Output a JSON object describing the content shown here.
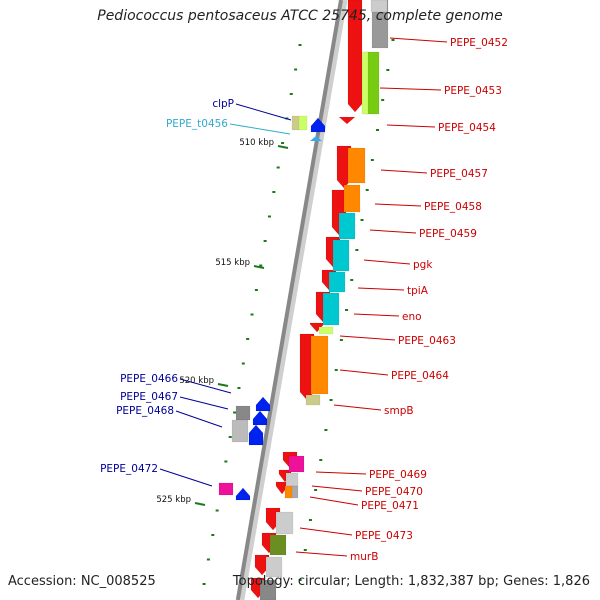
{
  "title": "Pediococcus pentosaceus ATCC 25745, complete genome",
  "footer": {
    "accession": "Accession: NC_008525",
    "topology": "Topology: circular; Length: 1,832,387 bp; Genes: 1,826"
  },
  "colors": {
    "label_red": "#cc0000",
    "label_blue": "#000099",
    "label_cyan": "#33aacc",
    "gene_red": "#ee1111",
    "gene_orange": "#ff8800",
    "gene_cyan": "#00c8d0",
    "gene_green": "#77cc11",
    "gene_lightgreen": "#ccff66",
    "gene_olive": "#6b8e23",
    "gene_gray": "#999999",
    "gene_magenta": "#ee1199",
    "gene_blue": "#0022ee",
    "gene_tan": "#cccc88",
    "gene_bright_green": "#22ee22",
    "axis_gray": "#888888",
    "tick_green": "#1a7a1a"
  },
  "ticks": [
    "510 kbp",
    "515 kbp",
    "520 kbp",
    "525 kbp"
  ],
  "labels": {
    "right": [
      "PEPE_0452",
      "PEPE_0453",
      "PEPE_0454",
      "PEPE_0457",
      "PEPE_0458",
      "PEPE_0459",
      "pgk",
      "tpiA",
      "eno",
      "PEPE_0463",
      "PEPE_0464",
      "smpB",
      "PEPE_0469",
      "PEPE_0470",
      "PEPE_0471",
      "PEPE_0473",
      "murB"
    ],
    "left": [
      "clpP",
      "PEPE_t0456",
      "PEPE_0466",
      "PEPE_0467",
      "PEPE_0468",
      "PEPE_0472"
    ]
  }
}
